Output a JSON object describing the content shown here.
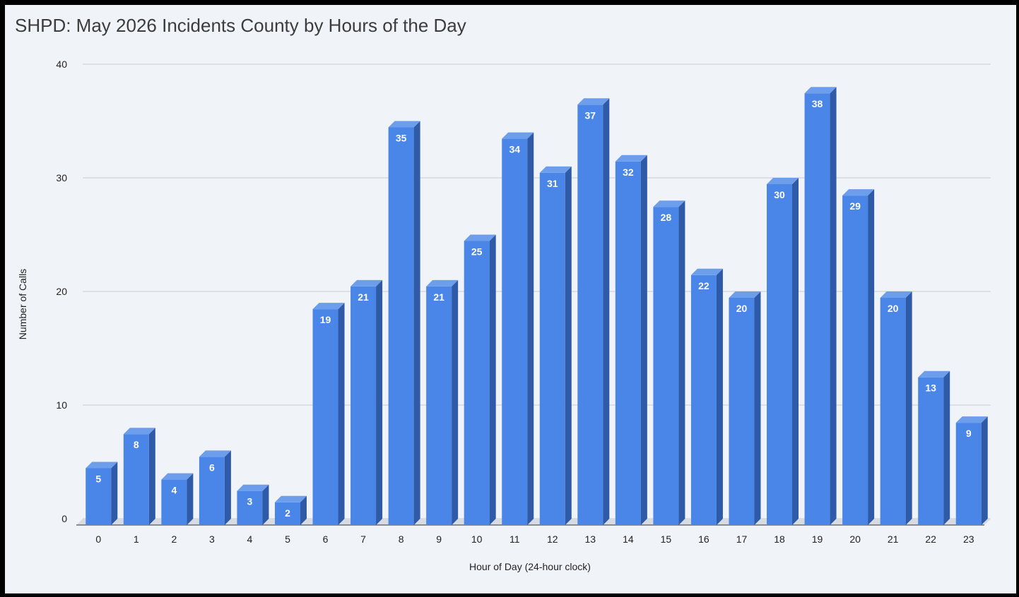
{
  "chart_data": {
    "type": "bar",
    "title": "SHPD: May 2026 Incidents County by Hours of the Day",
    "xlabel": "Hour of Day (24-hour clock)",
    "ylabel": "Number of Calls",
    "categories": [
      "0",
      "1",
      "2",
      "3",
      "4",
      "5",
      "6",
      "7",
      "8",
      "9",
      "10",
      "11",
      "12",
      "13",
      "14",
      "15",
      "16",
      "17",
      "18",
      "19",
      "20",
      "21",
      "22",
      "23"
    ],
    "values": [
      5,
      8,
      4,
      6,
      3,
      2,
      19,
      21,
      35,
      21,
      25,
      34,
      31,
      37,
      32,
      28,
      22,
      20,
      30,
      38,
      29,
      20,
      13,
      9
    ],
    "ylim": [
      0,
      40
    ],
    "yticks": [
      0,
      10,
      20,
      30,
      40
    ],
    "grid": true,
    "legend": "none",
    "style": "3d",
    "colors": {
      "bar_front": "#4a86e8",
      "bar_side": "#2f5aa8",
      "bar_top": "#6d9eeb",
      "background": "#f0f3f8",
      "gridline": "#c9ccd1"
    }
  }
}
